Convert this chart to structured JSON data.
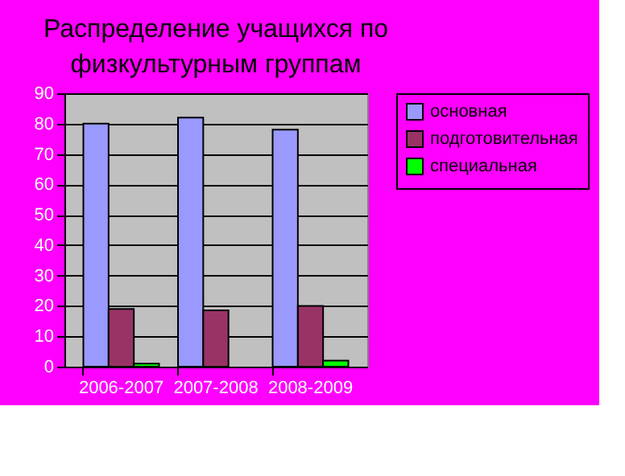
{
  "chart_data": {
    "type": "bar",
    "title": "Распределение учащихся по физкультурным группам",
    "categories": [
      "2006-2007",
      "2007-2008",
      "2008-2009"
    ],
    "series": [
      {
        "name": "основная",
        "color": "#9999ff",
        "values": [
          80,
          82,
          78
        ]
      },
      {
        "name": "подготовительная",
        "color": "#993366",
        "values": [
          19,
          18.5,
          20
        ]
      },
      {
        "name": "специальная",
        "color": "#00ff00",
        "values": [
          1,
          0,
          2
        ]
      }
    ],
    "ylim": [
      0,
      90
    ],
    "yticks": [
      0,
      10,
      20,
      30,
      40,
      50,
      60,
      70,
      80,
      90
    ],
    "grid": "y",
    "legend": "right"
  }
}
